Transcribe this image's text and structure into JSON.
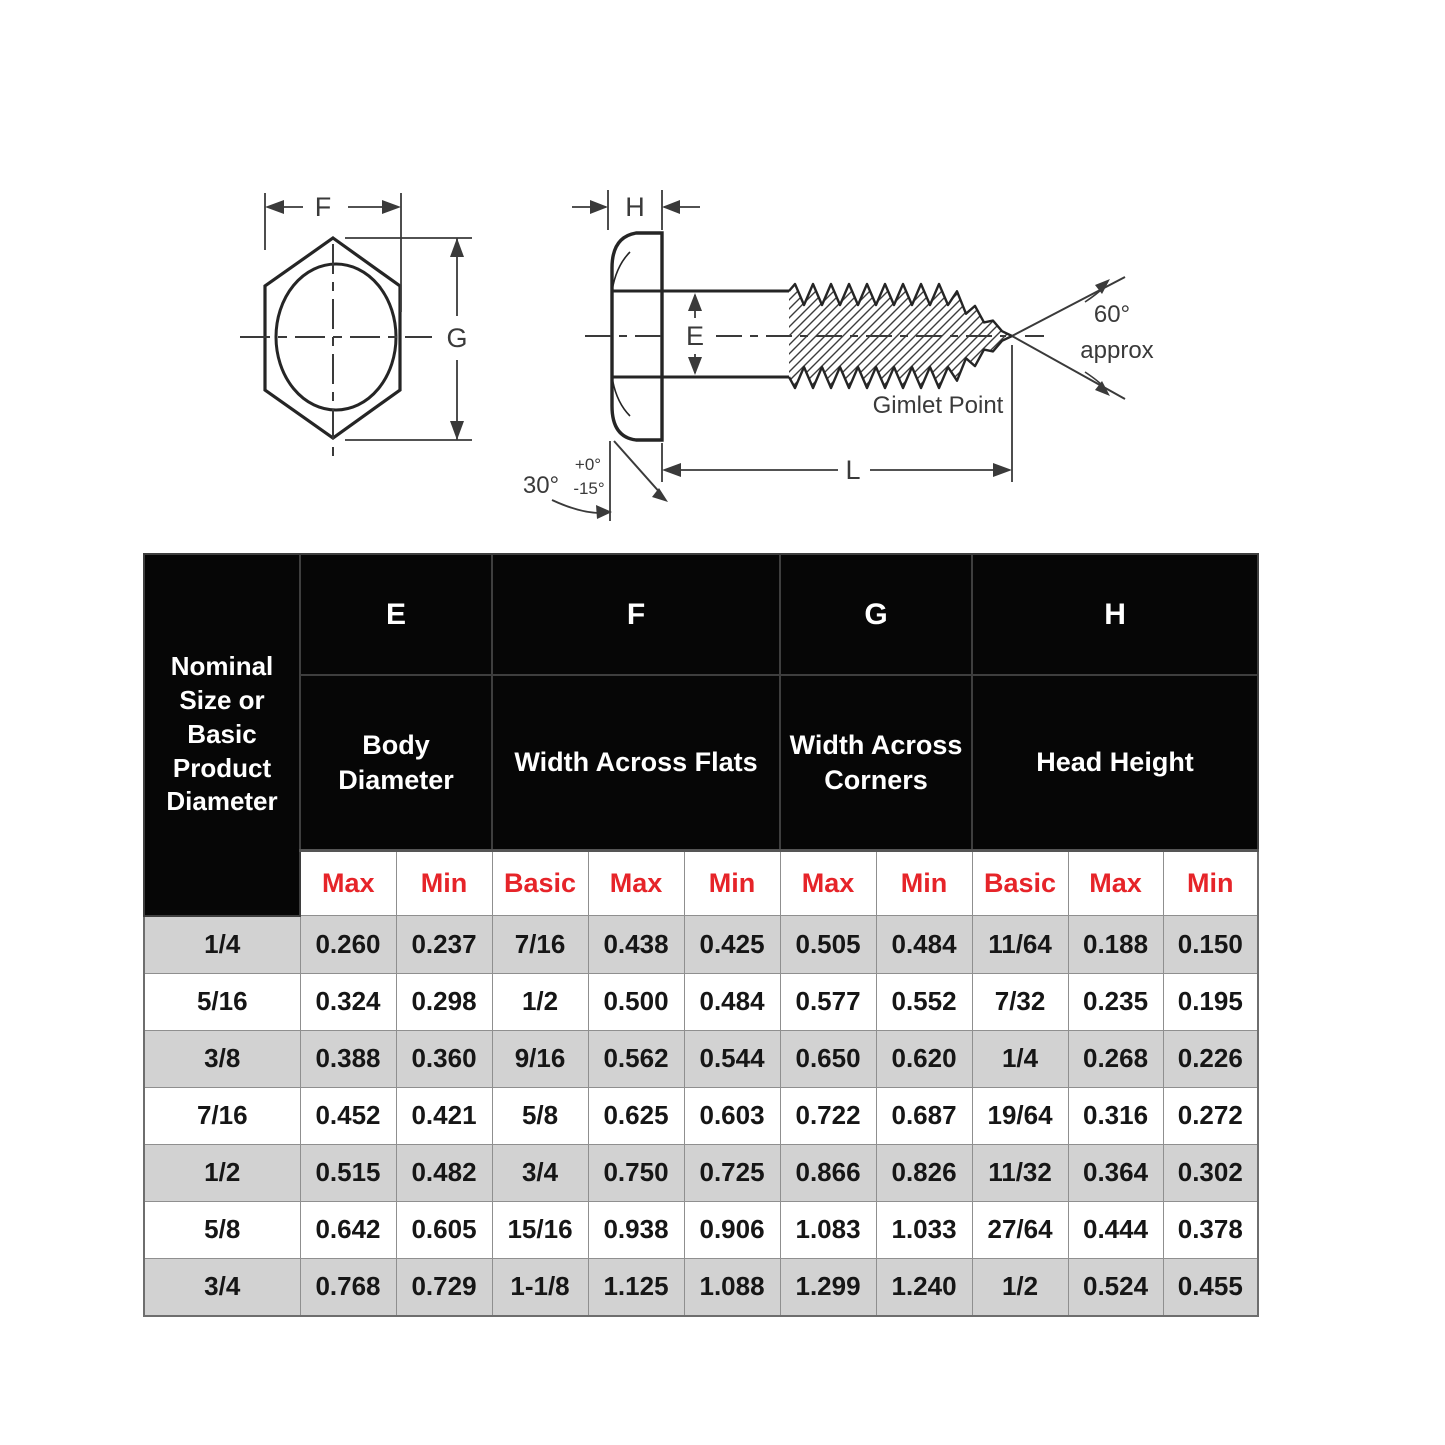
{
  "diagram": {
    "labels": {
      "f": "F",
      "g": "G",
      "h": "H",
      "e": "E",
      "l": "L",
      "angle60": "60°",
      "approx": "approx",
      "gimlet_point": "Gimlet Point",
      "angle30": "30°",
      "tol_plus": "+0°",
      "tol_minus": "-15°"
    }
  },
  "table": {
    "corner_header": "Nominal Size or Basic Product Diameter",
    "groups": [
      {
        "letter": "E",
        "name": "Body Diameter",
        "subs": [
          "Max",
          "Min"
        ]
      },
      {
        "letter": "F",
        "name": "Width Across Flats",
        "subs": [
          "Basic",
          "Max",
          "Min"
        ]
      },
      {
        "letter": "G",
        "name": "Width Across Corners",
        "subs": [
          "Max",
          "Min"
        ]
      },
      {
        "letter": "H",
        "name": "Head Height",
        "subs": [
          "Basic",
          "Max",
          "Min"
        ]
      }
    ],
    "rows": [
      [
        "1/4",
        "0.260",
        "0.237",
        "7/16",
        "0.438",
        "0.425",
        "0.505",
        "0.484",
        "11/64",
        "0.188",
        "0.150"
      ],
      [
        "5/16",
        "0.324",
        "0.298",
        "1/2",
        "0.500",
        "0.484",
        "0.577",
        "0.552",
        "7/32",
        "0.235",
        "0.195"
      ],
      [
        "3/8",
        "0.388",
        "0.360",
        "9/16",
        "0.562",
        "0.544",
        "0.650",
        "0.620",
        "1/4",
        "0.268",
        "0.226"
      ],
      [
        "7/16",
        "0.452",
        "0.421",
        "5/8",
        "0.625",
        "0.603",
        "0.722",
        "0.687",
        "19/64",
        "0.316",
        "0.272"
      ],
      [
        "1/2",
        "0.515",
        "0.482",
        "3/4",
        "0.750",
        "0.725",
        "0.866",
        "0.826",
        "11/32",
        "0.364",
        "0.302"
      ],
      [
        "5/8",
        "0.642",
        "0.605",
        "15/16",
        "0.938",
        "0.906",
        "1.083",
        "1.033",
        "27/64",
        "0.444",
        "0.378"
      ],
      [
        "3/4",
        "0.768",
        "0.729",
        "1-1/8",
        "1.125",
        "1.088",
        "1.299",
        "1.240",
        "1/2",
        "0.524",
        "0.455"
      ]
    ],
    "colors": {
      "accent_red": "#e62429",
      "row_alt": "#d2d2d2",
      "header_bg": "#060606"
    }
  }
}
